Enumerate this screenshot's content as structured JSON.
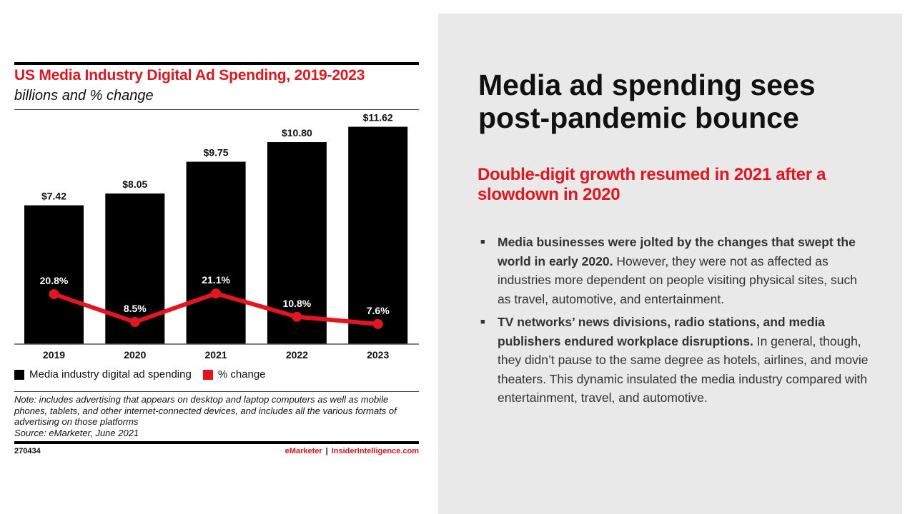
{
  "chart_data": {
    "type": "bar",
    "title": "US Media Industry Digital Ad Spending, 2019-2023",
    "subtitle": "billions and % change",
    "categories": [
      "2019",
      "2020",
      "2021",
      "2022",
      "2023"
    ],
    "series": [
      {
        "name": "Media industry digital ad spending",
        "type": "bar",
        "color": "#000000",
        "values": [
          7.42,
          8.05,
          9.75,
          10.8,
          11.62
        ],
        "labels": [
          "$7.42",
          "$8.05",
          "$9.75",
          "$10.80",
          "$11.62"
        ]
      },
      {
        "name": "% change",
        "type": "line",
        "color": "#e3151e",
        "values": [
          20.8,
          8.5,
          21.1,
          10.8,
          7.6
        ],
        "labels": [
          "20.8%",
          "8.5%",
          "21.1%",
          "10.8%",
          "7.6%"
        ]
      }
    ],
    "xlabel": "",
    "ylabel": "",
    "ylim": [
      0,
      11.62
    ],
    "grid": false,
    "legend": "bottom-left"
  },
  "legend": [
    {
      "label": "Media industry digital ad spending",
      "color": "#000000"
    },
    {
      "label": "% change",
      "color": "#e3151e"
    }
  ],
  "note": "Note: includes advertising that appears on desktop and laptop computers as well as mobile phones, tablets, and other internet-connected devices, and includes all the various formats of advertising on those platforms",
  "source": "Source: eMarketer, June 2021",
  "chart_id": "270434",
  "credit": {
    "brand": "eMarketer",
    "separator": "|",
    "site": "InsiderIntelligence.com"
  },
  "slide": {
    "headline": "Media ad spending sees post-pandemic bounce",
    "subhead": "Double-digit growth resumed in 2021 after a slowdown in 2020",
    "bullets": [
      {
        "bold": "Media businesses were jolted by the changes that swept the world in early 2020.",
        "text": " However, they were not as affected as industries more dependent on people visiting physical sites, such as travel, automotive, and entertainment."
      },
      {
        "bold": "TV networks’ news divisions, radio stations, and media publishers endured workplace disruptions.",
        "text": " In general, though, they didn’t pause to the same degree as hotels, airlines, and movie theaters. This dynamic insulated the media industry compared with entertainment, travel, and automotive."
      }
    ],
    "bullet_glyph": "■"
  }
}
